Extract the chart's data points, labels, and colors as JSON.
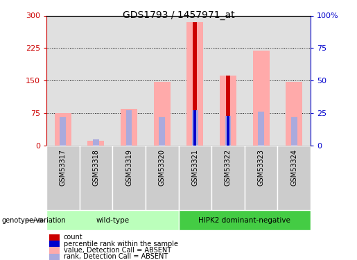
{
  "title": "GDS1793 / 1457971_at",
  "samples": [
    "GSM53317",
    "GSM53318",
    "GSM53319",
    "GSM53320",
    "GSM53321",
    "GSM53322",
    "GSM53323",
    "GSM53324"
  ],
  "value_bars": [
    75,
    12,
    85,
    147,
    285,
    162,
    220,
    148
  ],
  "rank_bars_pct": [
    22,
    5,
    27,
    22,
    27,
    23,
    26,
    22
  ],
  "count_bars": [
    3,
    0,
    0,
    0,
    285,
    162,
    0,
    0
  ],
  "percentile_bars_pct": [
    0,
    0,
    0,
    0,
    27,
    23,
    0,
    0
  ],
  "count_color": "#cc0000",
  "percentile_color": "#0000cc",
  "value_color": "#ffaaaa",
  "rank_color": "#aaaadd",
  "ylim_left": [
    0,
    300
  ],
  "ylim_right": [
    0,
    100
  ],
  "yticks_left": [
    0,
    75,
    150,
    225,
    300
  ],
  "yticks_right": [
    0,
    25,
    50,
    75,
    100
  ],
  "ytick_labels_left": [
    "0",
    "75",
    "150",
    "225",
    "300"
  ],
  "ytick_labels_right": [
    "0",
    "25",
    "50",
    "75",
    "100%"
  ],
  "groups": [
    {
      "label": "wild-type",
      "start": 0,
      "end": 3,
      "color": "#bbffbb"
    },
    {
      "label": "HIPK2 dominant-negative",
      "start": 4,
      "end": 7,
      "color": "#44cc44"
    }
  ],
  "genotype_label": "genotype/variation",
  "legend_items": [
    {
      "color": "#cc0000",
      "label": "count",
      "marker": "s"
    },
    {
      "color": "#0000cc",
      "label": "percentile rank within the sample",
      "marker": "s"
    },
    {
      "color": "#ffaaaa",
      "label": "value, Detection Call = ABSENT",
      "marker": "s"
    },
    {
      "color": "#aaaadd",
      "label": "rank, Detection Call = ABSENT",
      "marker": "s"
    }
  ],
  "left_axis_color": "#cc0000",
  "right_axis_color": "#0000cc",
  "col_bg_color": "#e0e0e0",
  "plot_bg_color": "#ffffff",
  "value_bar_width": 0.5,
  "rank_bar_width": 0.18,
  "count_bar_width": 0.12,
  "percentile_bar_width": 0.08
}
